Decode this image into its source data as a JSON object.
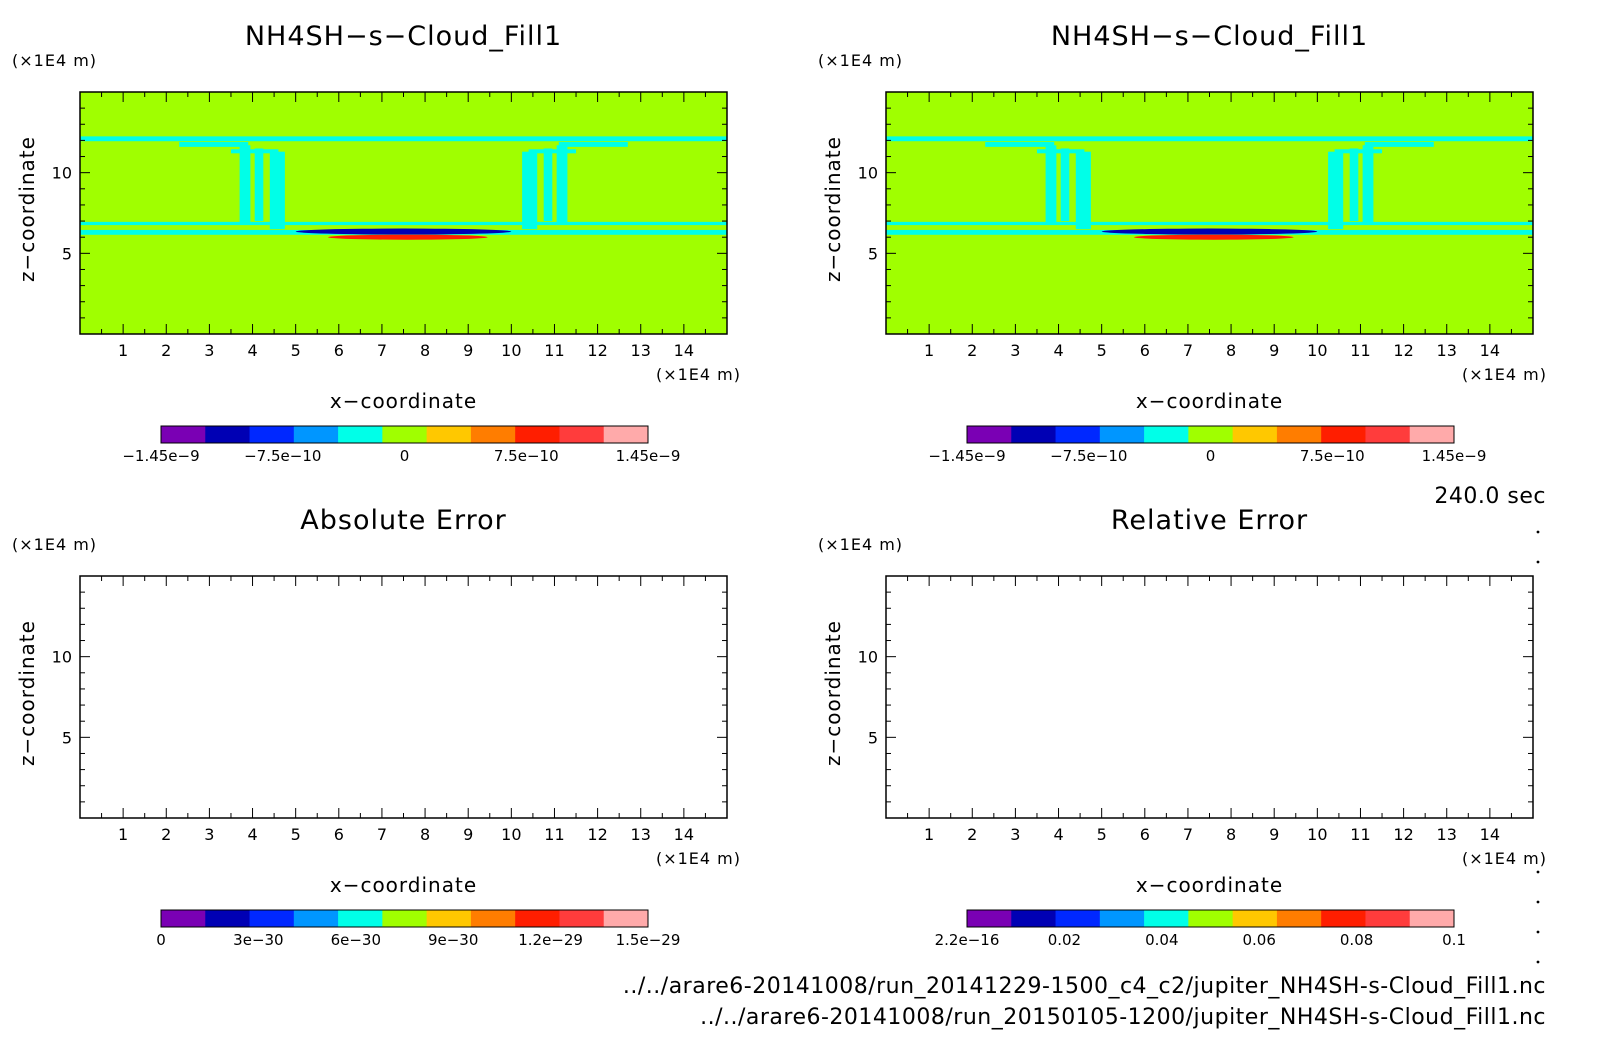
{
  "time_label": "240.0 sec",
  "footer": {
    "file1": "../../arare6-20141008/run_20141229-1500_c4_c2/jupiter_NH4SH-s-Cloud_Fill1.nc",
    "file2": "../../arare6-20141008/run_20150105-1200/jupiter_NH4SH-s-Cloud_Fill1.nc"
  },
  "palette": [
    "#7a00b4",
    "#0000b4",
    "#0028ff",
    "#0096ff",
    "#00ffe8",
    "#a0ff00",
    "#ffc800",
    "#ff7d00",
    "#ff1e00",
    "#ff3c3c",
    "#ffaaaa"
  ],
  "colors": {
    "background_field": "#a0ff00",
    "contour_band": "#00ffe8",
    "negative_core": "#0000b4",
    "positive_core": "#ff1e00"
  },
  "chart_data": [
    {
      "type": "heatmap",
      "title": "NH4SH−s−Cloud_Fill1",
      "xlabel": "x−coordinate",
      "ylabel": "z−coordinate",
      "x_unit": "(×1E4 m)",
      "y_unit": "(×1E4 m)",
      "xlim": [
        0,
        15
      ],
      "ylim": [
        0,
        15
      ],
      "x_ticks": [
        1,
        2,
        3,
        4,
        5,
        6,
        7,
        8,
        9,
        10,
        11,
        12,
        13,
        14
      ],
      "y_ticks": [
        5,
        10
      ],
      "field": "filled",
      "colorbar": {
        "ticks": [
          "−1.45e−9",
          "−7.5e−10",
          "0",
          "7.5e−10",
          "1.45e−9"
        ],
        "range": [
          -1.45e-09,
          1.45e-09
        ]
      }
    },
    {
      "type": "heatmap",
      "title": "NH4SH−s−Cloud_Fill1",
      "xlabel": "x−coordinate",
      "ylabel": "z−coordinate",
      "x_unit": "(×1E4 m)",
      "y_unit": "(×1E4 m)",
      "xlim": [
        0,
        15
      ],
      "ylim": [
        0,
        15
      ],
      "x_ticks": [
        1,
        2,
        3,
        4,
        5,
        6,
        7,
        8,
        9,
        10,
        11,
        12,
        13,
        14
      ],
      "y_ticks": [
        5,
        10
      ],
      "field": "filled",
      "colorbar": {
        "ticks": [
          "−1.45e−9",
          "−7.5e−10",
          "0",
          "7.5e−10",
          "1.45e−9"
        ],
        "range": [
          -1.45e-09,
          1.45e-09
        ]
      }
    },
    {
      "type": "heatmap",
      "title": "Absolute Error",
      "xlabel": "x−coordinate",
      "ylabel": "z−coordinate",
      "x_unit": "(×1E4 m)",
      "y_unit": "(×1E4 m)",
      "xlim": [
        0,
        15
      ],
      "ylim": [
        0,
        15
      ],
      "x_ticks": [
        1,
        2,
        3,
        4,
        5,
        6,
        7,
        8,
        9,
        10,
        11,
        12,
        13,
        14
      ],
      "y_ticks": [
        5,
        10
      ],
      "field": "empty",
      "colorbar": {
        "ticks": [
          "0",
          "3e−30",
          "6e−30",
          "9e−30",
          "1.2e−29",
          "1.5e−29"
        ],
        "range": [
          0,
          1.5e-29
        ]
      }
    },
    {
      "type": "heatmap",
      "title": "Relative Error",
      "xlabel": "x−coordinate",
      "ylabel": "z−coordinate",
      "x_unit": "(×1E4 m)",
      "y_unit": "(×1E4 m)",
      "xlim": [
        0,
        15
      ],
      "ylim": [
        0,
        15
      ],
      "x_ticks": [
        1,
        2,
        3,
        4,
        5,
        6,
        7,
        8,
        9,
        10,
        11,
        12,
        13,
        14
      ],
      "y_ticks": [
        5,
        10
      ],
      "field": "empty",
      "colorbar": {
        "ticks": [
          "2.2e−16",
          "0.02",
          "0.04",
          "0.06",
          "0.08",
          "0.1"
        ],
        "range": [
          2.2e-16,
          0.1
        ]
      }
    }
  ]
}
